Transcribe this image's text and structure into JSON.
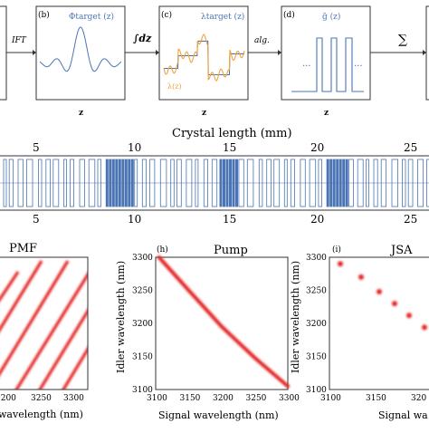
{
  "colors": {
    "blue": "#4a74b4",
    "orange": "#f2a33a",
    "red": "#e32222",
    "stripe_fill": "#4a74b4"
  },
  "pipeline": {
    "panel_b": {
      "tag": "(b)",
      "formula": "Φtarget (z)",
      "axis": "z"
    },
    "panel_c": {
      "tag": "(c)",
      "formula": "λtarget (z)",
      "formula2": "λ(z)",
      "axis": "z"
    },
    "panel_d": {
      "tag": "(d)",
      "formula": "g̃ (z)",
      "dots_left": "···",
      "dots_right": "···",
      "axis": "z"
    },
    "arrow_ift": "IFT",
    "arrow_int": "∫dz",
    "arrow_alg": "alg.",
    "arrow_sum": "∑"
  },
  "crystal": {
    "title": "Crystal  length  (mm)",
    "ticks_top": [
      "5",
      "10",
      "15",
      "20",
      "25"
    ],
    "ticks_bottom": [
      "5",
      "10",
      "15",
      "20",
      "25"
    ]
  },
  "panel_g": {
    "title": "PMF",
    "xlabel": "wavelength (nm)",
    "xticks": [
      "3200",
      "3250",
      "3300"
    ]
  },
  "panel_h": {
    "tag": "(h)",
    "title": "Pump",
    "xlabel": "Signal wavelength (nm)",
    "ylabel": "Idler wavelength (nm)",
    "xticks": [
      "3100",
      "3150",
      "3200",
      "3250",
      "3300"
    ],
    "yticks": [
      "3300",
      "3250",
      "3200",
      "3150",
      "3100"
    ]
  },
  "panel_i": {
    "tag": "(i)",
    "title": "JSA",
    "xlabel": "Signal wa",
    "ylabel": "Idler wavelength (nm)",
    "xticks": [
      "3100",
      "3150",
      "320"
    ],
    "yticks": [
      "3300",
      "3250",
      "3200",
      "3150",
      "3100"
    ]
  },
  "chart_data": [
    {
      "type": "scatter",
      "panel": "h",
      "title": "Pump",
      "xlabel": "Signal wavelength (nm)",
      "ylabel": "Idler wavelength (nm)",
      "xlim": [
        3100,
        3300
      ],
      "ylim": [
        3100,
        3300
      ],
      "series": [
        {
          "x": [
            3105,
            3150,
            3200,
            3250,
            3300
          ],
          "y": [
            3300,
            3250,
            3195,
            3148,
            3105
          ]
        }
      ]
    },
    {
      "type": "scatter",
      "panel": "i",
      "title": "JSA",
      "xlim": [
        3100,
        3210
      ],
      "ylim": [
        3100,
        3300
      ],
      "series": [
        {
          "x": [
            3112,
            3135,
            3155,
            3172,
            3188,
            3205
          ],
          "y": [
            3290,
            3270,
            3248,
            3230,
            3212,
            3194
          ]
        }
      ]
    }
  ]
}
